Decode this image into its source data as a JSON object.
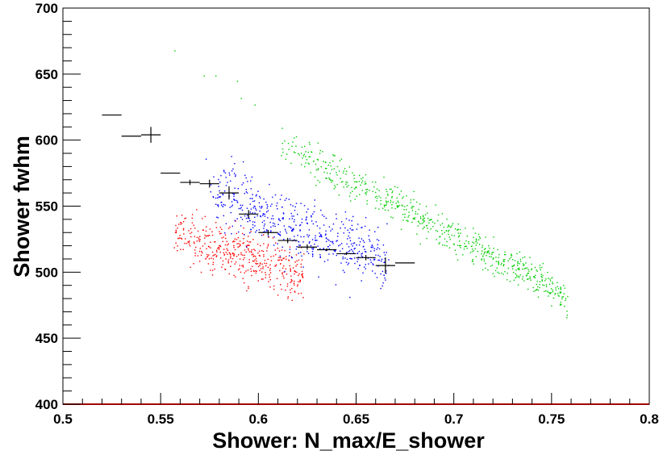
{
  "chart_data": {
    "type": "scatter",
    "xlabel": "Shower: N_max/E_shower",
    "ylabel": "Shower fwhm",
    "xlim": [
      0.5,
      0.8
    ],
    "ylim": [
      400,
      700
    ],
    "x_ticks": [
      "0.5",
      "0.55",
      "0.6",
      "0.65",
      "0.7",
      "0.75",
      "0.8"
    ],
    "y_ticks": [
      "400",
      "450",
      "500",
      "550",
      "600",
      "650",
      "700"
    ],
    "grid": false,
    "legend": "none",
    "series": [
      {
        "color": "#ff0000",
        "cluster": {
          "count": 420,
          "x_range": [
            0.557,
            0.622
          ],
          "y_center_at_x_range": [
            528,
            500
          ],
          "y_spread": 10
        },
        "points": [
          [
            0.558,
            543
          ],
          [
            0.562,
            541
          ],
          [
            0.566,
            544
          ],
          [
            0.571,
            541
          ],
          [
            0.575,
            533
          ],
          [
            0.578,
            538
          ],
          [
            0.583,
            526
          ],
          [
            0.587,
            524
          ],
          [
            0.592,
            510
          ],
          [
            0.597,
            514
          ],
          [
            0.601,
            503
          ],
          [
            0.606,
            500
          ],
          [
            0.611,
            491
          ],
          [
            0.616,
            487
          ],
          [
            0.619,
            505
          ]
        ]
      },
      {
        "color": "#0000ff",
        "cluster": {
          "count": 520,
          "x_range": [
            0.576,
            0.665
          ],
          "y_center_at_x_range": [
            560,
            508
          ],
          "y_spread": 12
        },
        "points": [
          [
            0.573,
            586
          ],
          [
            0.586,
            588
          ],
          [
            0.592,
            584
          ],
          [
            0.585,
            574
          ],
          [
            0.592,
            568
          ],
          [
            0.598,
            550
          ],
          [
            0.604,
            546
          ],
          [
            0.612,
            541
          ],
          [
            0.622,
            538
          ],
          [
            0.631,
            530
          ],
          [
            0.638,
            522
          ],
          [
            0.646,
            516
          ],
          [
            0.653,
            512
          ],
          [
            0.661,
            505
          ],
          [
            0.664,
            498
          ]
        ]
      },
      {
        "color": "#00cc00",
        "cluster": {
          "count": 620,
          "x_range": [
            0.612,
            0.758
          ],
          "y_center_at_x_range": [
            596,
            482
          ],
          "y_spread": 7
        },
        "points": [
          [
            0.557,
            668
          ],
          [
            0.572,
            649
          ],
          [
            0.578,
            649
          ],
          [
            0.589,
            645
          ],
          [
            0.591,
            632
          ],
          [
            0.598,
            627
          ],
          [
            0.612,
            598
          ],
          [
            0.618,
            602
          ],
          [
            0.742,
            487
          ],
          [
            0.749,
            484
          ],
          [
            0.758,
            482
          ]
        ]
      }
    ],
    "profile": {
      "color": "#000000",
      "x": [
        0.525,
        0.535,
        0.545,
        0.555,
        0.565,
        0.575,
        0.585,
        0.595,
        0.605,
        0.615,
        0.625,
        0.635,
        0.645,
        0.655,
        0.665,
        0.675
      ],
      "y": [
        619,
        603,
        604,
        575,
        568,
        567,
        560,
        544,
        530,
        524,
        519,
        517,
        514,
        511,
        505,
        507
      ],
      "x_half_width": [
        0.005,
        0.005,
        0.005,
        0.005,
        0.005,
        0.005,
        0.005,
        0.005,
        0.005,
        0.005,
        0.005,
        0.005,
        0.005,
        0.005,
        0.005,
        0.005
      ],
      "y_error": [
        0,
        0,
        6,
        0,
        2,
        3,
        5,
        3,
        2,
        2,
        2,
        1,
        1,
        2,
        6,
        0
      ]
    }
  }
}
